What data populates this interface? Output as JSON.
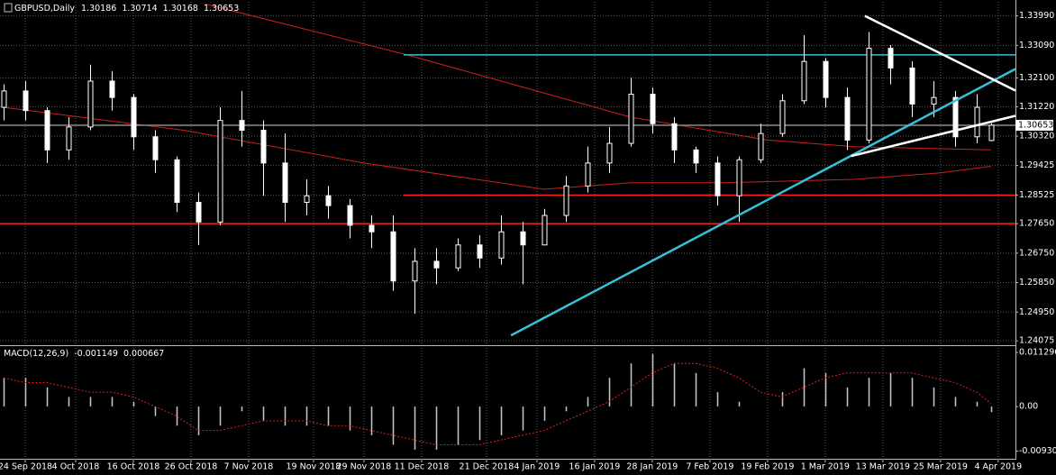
{
  "chart_data": [
    {
      "type": "candlestick",
      "title": "GBPUSD,Daily",
      "x": [
        0,
        3,
        6,
        9,
        12,
        15,
        18,
        21,
        24,
        27,
        30,
        33,
        36,
        39,
        42,
        45,
        48,
        51,
        54,
        57,
        60,
        63,
        66,
        69,
        72,
        75,
        78,
        81,
        84,
        87,
        90,
        93,
        96,
        99,
        102,
        105,
        108,
        111,
        114,
        117,
        120,
        123,
        126,
        129,
        132,
        135,
        137
      ],
      "open": [
        1.312,
        1.317,
        1.311,
        1.299,
        1.306,
        1.32,
        1.315,
        1.303,
        1.296,
        1.283,
        1.277,
        1.308,
        1.305,
        1.295,
        1.283,
        1.285,
        1.282,
        1.276,
        1.274,
        1.259,
        1.265,
        1.263,
        1.27,
        1.266,
        1.274,
        1.27,
        1.279,
        1.288,
        1.295,
        1.301,
        1.316,
        1.307,
        1.299,
        1.295,
        1.285,
        1.296,
        1.304,
        1.314,
        1.326,
        1.315,
        1.302,
        1.33,
        1.324,
        1.313,
        1.315,
        1.303,
        1.30186
      ],
      "high": [
        1.319,
        1.32,
        1.312,
        1.309,
        1.325,
        1.323,
        1.316,
        1.305,
        1.297,
        1.286,
        1.312,
        1.317,
        1.308,
        1.304,
        1.29,
        1.288,
        1.284,
        1.279,
        1.279,
        1.269,
        1.269,
        1.272,
        1.273,
        1.279,
        1.277,
        1.281,
        1.291,
        1.3,
        1.306,
        1.321,
        1.318,
        1.309,
        1.3,
        1.297,
        1.297,
        1.307,
        1.316,
        1.334,
        1.327,
        1.318,
        1.335,
        1.331,
        1.326,
        1.32,
        1.317,
        1.316,
        1.30714
      ],
      "low": [
        1.308,
        1.308,
        1.295,
        1.296,
        1.305,
        1.311,
        1.299,
        1.292,
        1.28,
        1.27,
        1.276,
        1.3,
        1.285,
        1.277,
        1.279,
        1.278,
        1.272,
        1.269,
        1.256,
        1.249,
        1.258,
        1.262,
        1.263,
        1.264,
        1.258,
        1.27,
        1.277,
        1.286,
        1.292,
        1.3,
        1.304,
        1.295,
        1.292,
        1.282,
        1.277,
        1.295,
        1.303,
        1.313,
        1.312,
        1.299,
        1.301,
        1.319,
        1.309,
        1.309,
        1.3,
        1.301,
        1.30168
      ],
      "close": [
        1.317,
        1.311,
        1.299,
        1.306,
        1.32,
        1.315,
        1.303,
        1.296,
        1.283,
        1.277,
        1.308,
        1.305,
        1.295,
        1.283,
        1.285,
        1.282,
        1.276,
        1.274,
        1.259,
        1.265,
        1.263,
        1.27,
        1.266,
        1.274,
        1.27,
        1.279,
        1.288,
        1.295,
        1.301,
        1.316,
        1.307,
        1.299,
        1.295,
        1.285,
        1.296,
        1.304,
        1.314,
        1.326,
        1.315,
        1.302,
        1.33,
        1.324,
        1.313,
        1.315,
        1.303,
        1.312,
        1.30653
      ],
      "xlim": [
        -0.5,
        140.4
      ],
      "ylim": [
        1.2394,
        1.3442
      ],
      "yticks": [
        {
          "value": 1.3399,
          "label": "1.33990"
        },
        {
          "value": 1.3309,
          "label": "1.33090"
        },
        {
          "value": 1.321,
          "label": "1.32100"
        },
        {
          "value": 1.3122,
          "label": "1.31220"
        },
        {
          "value": 1.3032,
          "label": "1.30320"
        },
        1.29425,
        1.28525,
        {
          "value": 1.2765,
          "label": "1.27650"
        },
        {
          "value": 1.2675,
          "label": "1.26750"
        },
        {
          "value": 1.2585,
          "label": "1.25850"
        },
        {
          "value": 1.2495,
          "label": "1.24950"
        },
        1.24075
      ],
      "xticks": [
        {
          "value": 3,
          "label": "24 Sep 2018"
        },
        {
          "value": 10,
          "label": "4 Oct 2018"
        },
        {
          "value": 18,
          "label": "16 Oct 2018"
        },
        {
          "value": 26,
          "label": "26 Oct 2018"
        },
        {
          "value": 34,
          "label": "7 Nov 2018"
        },
        {
          "value": 43,
          "label": "19 Nov 2018"
        },
        {
          "value": 50,
          "label": "29 Nov 2018"
        },
        {
          "value": 58,
          "label": "11 Dec 2018"
        },
        {
          "value": 67,
          "label": "21 Dec 2018"
        },
        {
          "value": 74,
          "label": "4 Jan 2019"
        },
        {
          "value": 82,
          "label": "16 Jan 2019"
        },
        {
          "value": 90,
          "label": "28 Jan 2019"
        },
        {
          "value": 98,
          "label": "7 Feb 2019"
        },
        {
          "value": 106,
          "label": "19 Feb 2019"
        },
        {
          "value": 114,
          "label": "1 Mar 2019"
        },
        {
          "value": 122,
          "label": "13 Mar 2019"
        },
        {
          "value": 130,
          "label": "25 Mar 2019"
        },
        {
          "value": 138,
          "label": "4 Apr 2019"
        }
      ],
      "grid": true,
      "up_color": "#000000",
      "down_color": "#ffffff",
      "wick_color": "#ffffff",
      "moving_averages": [
        {
          "color": "#cc1f1f",
          "x": [
            28,
            56,
            87,
            106,
            118,
            137
          ],
          "values": [
            1.3435,
            1.328,
            1.309,
            1.302,
            1.3,
            1.299
          ]
        },
        {
          "color": "#cc1f1f",
          "x": [
            0,
            25,
            50,
            75,
            87,
            100,
            118,
            130,
            137
          ],
          "values": [
            1.312,
            1.305,
            1.295,
            1.287,
            1.289,
            1.289,
            1.29,
            1.292,
            1.294
          ]
        }
      ],
      "hlines": [
        {
          "value": 1.328,
          "color": "#36c0d8",
          "x_start": 55.5
        },
        {
          "value": 1.30653,
          "color": "#8a8a8a",
          "x_start": -0.5
        },
        {
          "value": 1.2852,
          "color": "#ff2020",
          "x_start": 55.5
        },
        {
          "value": 1.2765,
          "color": "#ff2020",
          "x_start": -0.5
        }
      ],
      "trendlines": [
        {
          "color": "#36c0d8",
          "x": [
            70.4,
            140.4
          ],
          "values": [
            1.2424,
            1.3237
          ]
        },
        {
          "color": "#ffffff",
          "x": [
            119.5,
            140.4
          ],
          "values": [
            1.3399,
            1.3171
          ]
        },
        {
          "color": "#ffffff",
          "x": [
            117.6,
            140.4
          ],
          "values": [
            1.2971,
            1.3094
          ]
        }
      ]
    },
    {
      "type": "macd",
      "title": "MACD(12,26,9)",
      "histogram": [
        0.006,
        0.006,
        0.004,
        0.002,
        0.002,
        0.002,
        0.001,
        -0.002,
        -0.004,
        -0.006,
        -0.004,
        -0.001,
        -0.003,
        -0.004,
        -0.004,
        -0.004,
        -0.005,
        -0.006,
        -0.008,
        -0.009,
        -0.009,
        -0.008,
        -0.007,
        -0.006,
        -0.005,
        -0.003,
        -0.001,
        0.002,
        0.006,
        0.009,
        0.011,
        0.009,
        0.007,
        0.003,
        0.001,
        0.0,
        0.003,
        0.008,
        0.007,
        0.004,
        0.006,
        0.007,
        0.006,
        0.004,
        0.002,
        0.001,
        -0.001149
      ],
      "signal": [
        0.006,
        0.005,
        0.005,
        0.004,
        0.003,
        0.003,
        0.002,
        0.0,
        -0.002,
        -0.005,
        -0.005,
        -0.004,
        -0.003,
        -0.003,
        -0.003,
        -0.004,
        -0.004,
        -0.005,
        -0.006,
        -0.007,
        -0.008,
        -0.008,
        -0.008,
        -0.007,
        -0.006,
        -0.005,
        -0.003,
        -0.001,
        0.001,
        0.004,
        0.007,
        0.009,
        0.009,
        0.008,
        0.006,
        0.003,
        0.002,
        0.004,
        0.006,
        0.007,
        0.007,
        0.007,
        0.007,
        0.006,
        0.005,
        0.003,
        0.000667
      ],
      "histogram_color": "#c8c8c8",
      "signal_color": "#e02020",
      "ylim": [
        -0.0111,
        0.01224
      ],
      "yticks": [
        0.011296,
        {
          "value": 0,
          "label": "0.00"
        },
        -0.009306
      ]
    }
  ]
}
